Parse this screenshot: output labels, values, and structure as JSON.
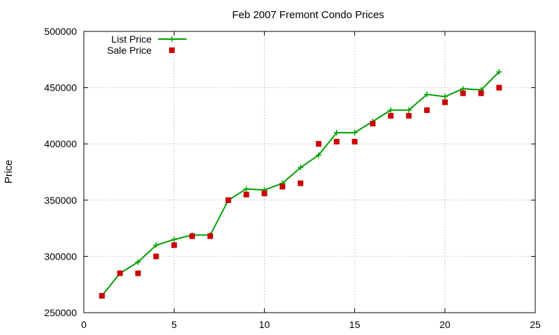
{
  "chart_data": {
    "type": "line",
    "title": "Feb 2007 Fremont Condo Prices",
    "xlabel": "",
    "ylabel": "Price",
    "xlim": [
      0,
      25
    ],
    "ylim": [
      250000,
      500000
    ],
    "xticks": [
      0,
      5,
      10,
      15,
      20,
      25
    ],
    "yticks": [
      250000,
      300000,
      350000,
      400000,
      450000,
      500000
    ],
    "grid": true,
    "legend_position": "top-left",
    "series": [
      {
        "name": "List Price",
        "style": "line+cross",
        "color": "#00a000",
        "x": [
          1,
          2,
          3,
          4,
          5,
          6,
          7,
          8,
          9,
          10,
          11,
          12,
          13,
          14,
          15,
          16,
          17,
          18,
          19,
          20,
          21,
          22,
          23
        ],
        "y": [
          265000,
          285000,
          295000,
          310000,
          315000,
          319000,
          319000,
          350000,
          360000,
          359000,
          365000,
          379000,
          390000,
          410000,
          410000,
          420000,
          430000,
          430000,
          444000,
          442000,
          449000,
          448000,
          464000
        ]
      },
      {
        "name": "Sale Price",
        "style": "square",
        "color": "#cc0000",
        "x": [
          1,
          2,
          3,
          4,
          5,
          6,
          7,
          8,
          9,
          10,
          11,
          12,
          13,
          14,
          15,
          16,
          17,
          18,
          19,
          20,
          21,
          22,
          23
        ],
        "y": [
          265000,
          285000,
          285000,
          300000,
          310000,
          318000,
          318000,
          350000,
          355000,
          356000,
          362000,
          365000,
          400000,
          402000,
          402000,
          418000,
          425000,
          425000,
          430000,
          437000,
          445000,
          445000,
          450000
        ]
      }
    ]
  }
}
